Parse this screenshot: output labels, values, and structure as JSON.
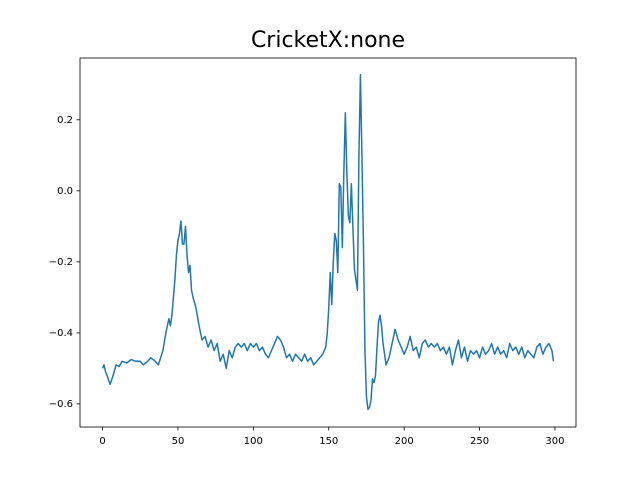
{
  "chart_data": {
    "type": "line",
    "title": "CricketX:none",
    "x": [
      0,
      1,
      2,
      3,
      5,
      7,
      9,
      11,
      13,
      16,
      19,
      22,
      25,
      27,
      30,
      32,
      35,
      37,
      40,
      42,
      44,
      45,
      46,
      47,
      48,
      49,
      50,
      51,
      52,
      53,
      54,
      55,
      56,
      57,
      58,
      59,
      60,
      62,
      64,
      66,
      68,
      70,
      72,
      74,
      76,
      78,
      80,
      82,
      84,
      86,
      88,
      90,
      92,
      94,
      96,
      98,
      100,
      102,
      104,
      106,
      108,
      110,
      112,
      114,
      116,
      118,
      120,
      122,
      124,
      126,
      128,
      130,
      132,
      134,
      136,
      138,
      140,
      142,
      144,
      146,
      148,
      149,
      150,
      151,
      152,
      153,
      154,
      155,
      156,
      157,
      158,
      159,
      160,
      161,
      162,
      163,
      164,
      165,
      166,
      167,
      168,
      169,
      170,
      171,
      172,
      173,
      174,
      175,
      176,
      177,
      178,
      179,
      180,
      181,
      182,
      183,
      184,
      185,
      186,
      187,
      188,
      190,
      192,
      194,
      196,
      198,
      200,
      202,
      204,
      206,
      208,
      210,
      212,
      214,
      216,
      218,
      220,
      222,
      224,
      226,
      228,
      230,
      232,
      234,
      236,
      238,
      240,
      242,
      244,
      246,
      248,
      250,
      252,
      254,
      256,
      258,
      260,
      262,
      264,
      266,
      268,
      270,
      272,
      274,
      276,
      278,
      280,
      282,
      284,
      286,
      288,
      290,
      292,
      294,
      296,
      298,
      299
    ],
    "series": [
      {
        "color": "#1f77b4",
        "values": [
          -0.5,
          -0.49,
          -0.51,
          -0.52,
          -0.545,
          -0.52,
          -0.49,
          -0.495,
          -0.48,
          -0.485,
          -0.475,
          -0.48,
          -0.48,
          -0.49,
          -0.48,
          -0.47,
          -0.48,
          -0.49,
          -0.45,
          -0.4,
          -0.36,
          -0.38,
          -0.35,
          -0.3,
          -0.25,
          -0.18,
          -0.14,
          -0.12,
          -0.085,
          -0.15,
          -0.15,
          -0.1,
          -0.18,
          -0.23,
          -0.21,
          -0.28,
          -0.3,
          -0.33,
          -0.38,
          -0.42,
          -0.41,
          -0.44,
          -0.42,
          -0.45,
          -0.43,
          -0.48,
          -0.46,
          -0.5,
          -0.45,
          -0.47,
          -0.44,
          -0.43,
          -0.44,
          -0.43,
          -0.45,
          -0.43,
          -0.44,
          -0.43,
          -0.45,
          -0.44,
          -0.46,
          -0.47,
          -0.45,
          -0.43,
          -0.41,
          -0.42,
          -0.44,
          -0.47,
          -0.46,
          -0.48,
          -0.46,
          -0.47,
          -0.48,
          -0.46,
          -0.48,
          -0.47,
          -0.49,
          -0.48,
          -0.47,
          -0.46,
          -0.44,
          -0.4,
          -0.33,
          -0.23,
          -0.32,
          -0.2,
          -0.12,
          -0.14,
          -0.23,
          0.02,
          0.01,
          -0.16,
          0.05,
          0.22,
          0.05,
          -0.07,
          -0.09,
          0.02,
          -0.1,
          -0.22,
          -0.25,
          -0.28,
          0.1,
          0.327,
          0.1,
          -0.15,
          -0.45,
          -0.58,
          -0.615,
          -0.61,
          -0.59,
          -0.53,
          -0.54,
          -0.52,
          -0.44,
          -0.37,
          -0.35,
          -0.38,
          -0.43,
          -0.46,
          -0.49,
          -0.47,
          -0.43,
          -0.39,
          -0.42,
          -0.44,
          -0.46,
          -0.44,
          -0.41,
          -0.45,
          -0.44,
          -0.47,
          -0.43,
          -0.42,
          -0.44,
          -0.43,
          -0.44,
          -0.43,
          -0.45,
          -0.44,
          -0.46,
          -0.44,
          -0.49,
          -0.45,
          -0.42,
          -0.47,
          -0.44,
          -0.48,
          -0.45,
          -0.46,
          -0.45,
          -0.47,
          -0.44,
          -0.46,
          -0.45,
          -0.43,
          -0.46,
          -0.44,
          -0.46,
          -0.45,
          -0.47,
          -0.43,
          -0.45,
          -0.44,
          -0.46,
          -0.44,
          -0.47,
          -0.45,
          -0.46,
          -0.47,
          -0.44,
          -0.43,
          -0.46,
          -0.44,
          -0.43,
          -0.45,
          -0.48
        ]
      }
    ],
    "xlim": [
      -14.95,
      313.95
    ],
    "ylim": [
      -0.665,
      0.374
    ],
    "xticks": [
      0,
      50,
      100,
      150,
      200,
      250,
      300
    ],
    "yticks": [
      {
        "value": -0.6,
        "label": "−0.6"
      },
      {
        "value": -0.4,
        "label": "−0.4"
      },
      {
        "value": -0.2,
        "label": "−0.2"
      },
      {
        "value": 0,
        "label": "0.0"
      },
      0.2
    ],
    "grid": false
  }
}
